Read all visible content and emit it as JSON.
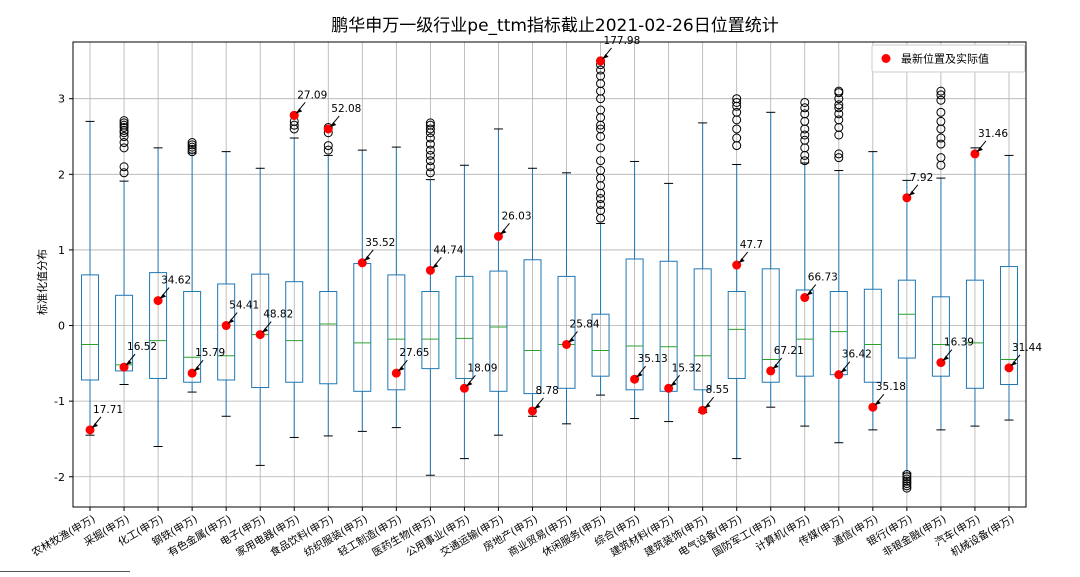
{
  "chart_data": {
    "type": "box",
    "title": "鹏华申万一级行业pe_ttm指标截止2021-02-26日位置统计",
    "xlabel": "",
    "ylabel": "标准化值分布",
    "ylim": [
      -2.4,
      3.75
    ],
    "yticks": [
      -2,
      -1,
      0,
      1,
      2,
      3
    ],
    "grid": true,
    "legend": {
      "label": "最新位置及实际值",
      "position": "top-right"
    },
    "colors": {
      "box": "#1f77b4",
      "median": "#2ca02c",
      "point": "#ff0000",
      "flier": "#000000",
      "grid": "#b0b0b0"
    },
    "categories": [
      "农林牧渔(申万)",
      "采掘(申万)",
      "化工(申万)",
      "钢铁(申万)",
      "有色金属(申万)",
      "电子(申万)",
      "家用电器(申万)",
      "食品饮料(申万)",
      "纺织服装(申万)",
      "轻工制造(申万)",
      "医药生物(申万)",
      "公用事业(申万)",
      "交通运输(申万)",
      "房地产(申万)",
      "商业贸易(申万)",
      "休闲服务(申万)",
      "综合(申万)",
      "建筑材料(申万)",
      "建筑装饰(申万)",
      "电气设备(申万)",
      "国防军工(申万)",
      "计算机(申万)",
      "传媒(申万)",
      "通信(申万)",
      "银行(申万)",
      "非银金融(申万)",
      "汽车(申万)",
      "机械设备(申万)"
    ],
    "boxes": [
      {
        "whislo": -1.45,
        "q1": -0.72,
        "med": -0.25,
        "q3": 0.67,
        "whishi": 2.7,
        "fliers": []
      },
      {
        "whislo": -0.78,
        "q1": -0.6,
        "med": -0.52,
        "q3": 0.4,
        "whishi": 1.91,
        "fliers": [
          2.02,
          2.1,
          2.35,
          2.42,
          2.5,
          2.55,
          2.58,
          2.62,
          2.65,
          2.68,
          2.71
        ]
      },
      {
        "whislo": -1.6,
        "q1": -0.7,
        "med": -0.2,
        "q3": 0.7,
        "whishi": 2.35,
        "fliers": []
      },
      {
        "whislo": -0.88,
        "q1": -0.75,
        "med": -0.42,
        "q3": 0.45,
        "whishi": 2.28,
        "fliers": [
          2.3,
          2.33,
          2.36,
          2.39,
          2.42
        ]
      },
      {
        "whislo": -1.2,
        "q1": -0.72,
        "med": -0.4,
        "q3": 0.55,
        "whishi": 2.3,
        "fliers": []
      },
      {
        "whislo": -1.85,
        "q1": -0.82,
        "med": -0.12,
        "q3": 0.68,
        "whishi": 2.08,
        "fliers": []
      },
      {
        "whislo": -1.48,
        "q1": -0.75,
        "med": -0.2,
        "q3": 0.58,
        "whishi": 2.48,
        "fliers": [
          2.6,
          2.65,
          2.7,
          2.78
        ]
      },
      {
        "whislo": -1.46,
        "q1": -0.77,
        "med": 0.02,
        "q3": 0.45,
        "whishi": 2.25,
        "fliers": [
          2.32,
          2.38,
          2.55,
          2.62
        ]
      },
      {
        "whislo": -1.4,
        "q1": -0.87,
        "med": -0.23,
        "q3": 0.82,
        "whishi": 2.32,
        "fliers": []
      },
      {
        "whislo": -1.35,
        "q1": -0.85,
        "med": -0.18,
        "q3": 0.67,
        "whishi": 2.36,
        "fliers": []
      },
      {
        "whislo": -1.98,
        "q1": -0.57,
        "med": -0.18,
        "q3": 0.45,
        "whishi": 1.93,
        "fliers": [
          2.02,
          2.1,
          2.18,
          2.25,
          2.32,
          2.4,
          2.48,
          2.55,
          2.6,
          2.65,
          2.68
        ]
      },
      {
        "whislo": -1.76,
        "q1": -0.7,
        "med": -0.17,
        "q3": 0.65,
        "whishi": 2.12,
        "fliers": []
      },
      {
        "whislo": -1.45,
        "q1": -0.87,
        "med": -0.02,
        "q3": 0.72,
        "whishi": 2.6,
        "fliers": []
      },
      {
        "whislo": -1.2,
        "q1": -0.9,
        "med": -0.33,
        "q3": 0.87,
        "whishi": 2.08,
        "fliers": []
      },
      {
        "whislo": -1.3,
        "q1": -0.83,
        "med": -0.25,
        "q3": 0.65,
        "whishi": 2.02,
        "fliers": []
      },
      {
        "whislo": -0.92,
        "q1": -0.67,
        "med": -0.33,
        "q3": 0.15,
        "whishi": 1.35,
        "fliers": [
          1.42,
          1.52,
          1.6,
          1.68,
          1.75,
          1.85,
          1.95,
          2.05,
          2.18,
          2.35,
          2.5,
          2.6,
          2.65,
          2.75,
          2.85,
          3.0,
          3.1,
          3.2,
          3.3,
          3.38,
          3.45,
          3.5
        ]
      },
      {
        "whislo": -1.23,
        "q1": -0.85,
        "med": -0.27,
        "q3": 0.88,
        "whishi": 2.17,
        "fliers": []
      },
      {
        "whislo": -1.27,
        "q1": -0.87,
        "med": -0.28,
        "q3": 0.85,
        "whishi": 1.88,
        "fliers": []
      },
      {
        "whislo": -1.15,
        "q1": -0.85,
        "med": -0.4,
        "q3": 0.75,
        "whishi": 2.68,
        "fliers": []
      },
      {
        "whislo": -1.76,
        "q1": -0.7,
        "med": -0.05,
        "q3": 0.45,
        "whishi": 2.13,
        "fliers": [
          2.38,
          2.48,
          2.6,
          2.72,
          2.82,
          2.9,
          2.95,
          3.0
        ]
      },
      {
        "whislo": -1.08,
        "q1": -0.75,
        "med": -0.45,
        "q3": 0.75,
        "whishi": 2.82,
        "fliers": []
      },
      {
        "whislo": -1.33,
        "q1": -0.67,
        "med": -0.18,
        "q3": 0.47,
        "whishi": 2.15,
        "fliers": [
          2.18,
          2.25,
          2.35,
          2.45,
          2.52,
          2.6,
          2.7,
          2.8,
          2.88,
          2.95
        ]
      },
      {
        "whislo": -1.55,
        "q1": -0.65,
        "med": -0.08,
        "q3": 0.45,
        "whishi": 2.05,
        "fliers": [
          2.22,
          2.27,
          2.52,
          2.62,
          2.72,
          2.8,
          2.88,
          2.92,
          3.0,
          3.08,
          3.1
        ]
      },
      {
        "whislo": -1.38,
        "q1": -0.75,
        "med": -0.25,
        "q3": 0.48,
        "whishi": 2.3,
        "fliers": []
      },
      {
        "whislo": -1.95,
        "q1": -0.43,
        "med": 0.15,
        "q3": 0.6,
        "whishi": 1.92,
        "fliers": [
          -1.97,
          -2.0,
          -2.03,
          -2.06,
          -2.09,
          -2.12,
          -2.15
        ]
      },
      {
        "whislo": -1.38,
        "q1": -0.67,
        "med": -0.25,
        "q3": 0.38,
        "whishi": 1.95,
        "fliers": [
          2.12,
          2.22,
          2.4,
          2.48,
          2.6,
          2.7,
          2.82,
          2.98,
          3.05,
          3.1
        ]
      },
      {
        "whislo": -1.33,
        "q1": -0.83,
        "med": -0.23,
        "q3": 0.6,
        "whishi": 2.35,
        "fliers": []
      },
      {
        "whislo": -1.25,
        "q1": -0.78,
        "med": -0.45,
        "q3": 0.78,
        "whishi": 2.25,
        "fliers": []
      }
    ],
    "latest": [
      {
        "y": -1.38,
        "label": "17.71"
      },
      {
        "y": -0.55,
        "label": "16.52"
      },
      {
        "y": 0.33,
        "label": "34.62"
      },
      {
        "y": -0.63,
        "label": "15.79"
      },
      {
        "y": 0.0,
        "label": "54.41"
      },
      {
        "y": -0.12,
        "label": "48.82"
      },
      {
        "y": 2.78,
        "label": "27.09"
      },
      {
        "y": 2.6,
        "label": "52.08"
      },
      {
        "y": 0.83,
        "label": "35.52"
      },
      {
        "y": -0.63,
        "label": "27.65"
      },
      {
        "y": 0.73,
        "label": "44.74"
      },
      {
        "y": -0.83,
        "label": "18.09"
      },
      {
        "y": 1.18,
        "label": "26.03"
      },
      {
        "y": -1.13,
        "label": "8.78"
      },
      {
        "y": -0.25,
        "label": "25.84"
      },
      {
        "y": 3.5,
        "label": "177.98"
      },
      {
        "y": -0.71,
        "label": "35.13"
      },
      {
        "y": -0.83,
        "label": "15.32"
      },
      {
        "y": -1.12,
        "label": "8.55"
      },
      {
        "y": 0.8,
        "label": "47.7"
      },
      {
        "y": -0.6,
        "label": "67.21"
      },
      {
        "y": 0.37,
        "label": "66.73"
      },
      {
        "y": -0.65,
        "label": "36.42"
      },
      {
        "y": -1.08,
        "label": "35.18"
      },
      {
        "y": 1.69,
        "label": "7.92"
      },
      {
        "y": -0.49,
        "label": "16.39"
      },
      {
        "y": 2.27,
        "label": "31.46"
      },
      {
        "y": -0.56,
        "label": "31.44"
      }
    ]
  }
}
